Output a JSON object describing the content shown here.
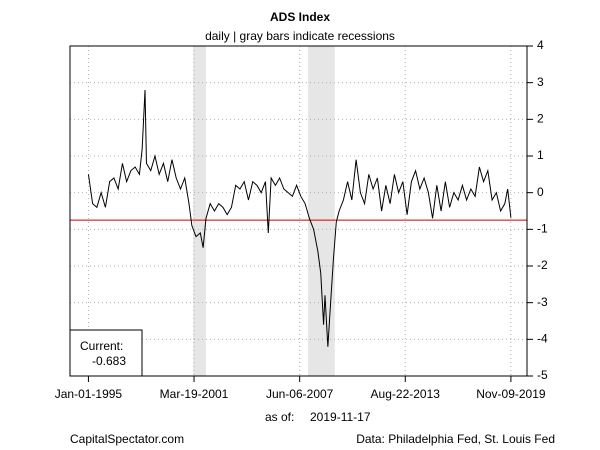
{
  "chart_data": {
    "type": "line",
    "title": "ADS Index",
    "subtitle": "daily | gray bars indicate recessions",
    "x": [
      "1995-01-01",
      "1995-04-01",
      "1995-07-01",
      "1995-10-01",
      "1996-01-01",
      "1996-04-01",
      "1996-07-01",
      "1996-10-01",
      "1997-01-01",
      "1997-04-01",
      "1997-07-01",
      "1997-10-01",
      "1998-01-01",
      "1998-03-01",
      "1998-05-01",
      "1998-06-01",
      "1998-09-01",
      "1998-12-01",
      "1999-03-01",
      "1999-06-01",
      "1999-09-01",
      "1999-12-01",
      "2000-03-01",
      "2000-06-01",
      "2000-09-01",
      "2000-12-01",
      "2001-02-01",
      "2001-05-01",
      "2001-08-01",
      "2001-10-01",
      "2001-12-01",
      "2002-03-01",
      "2002-06-01",
      "2002-09-01",
      "2002-12-01",
      "2003-03-01",
      "2003-06-01",
      "2003-09-01",
      "2003-12-01",
      "2004-03-01",
      "2004-06-01",
      "2004-09-01",
      "2004-12-01",
      "2005-03-01",
      "2005-06-01",
      "2005-08-01",
      "2005-10-01",
      "2006-01-01",
      "2006-04-01",
      "2006-07-01",
      "2006-10-01",
      "2007-01-01",
      "2007-04-01",
      "2007-07-01",
      "2007-10-01",
      "2008-01-01",
      "2008-04-01",
      "2008-07-01",
      "2008-09-01",
      "2008-11-01",
      "2008-12-01",
      "2009-02-01",
      "2009-04-01",
      "2009-06-01",
      "2009-08-01",
      "2009-10-01",
      "2010-01-01",
      "2010-04-01",
      "2010-07-01",
      "2010-10-01",
      "2011-01-01",
      "2011-04-01",
      "2011-07-01",
      "2011-10-01",
      "2012-01-01",
      "2012-04-01",
      "2012-07-01",
      "2012-10-01",
      "2013-01-01",
      "2013-04-01",
      "2013-07-01",
      "2013-10-01",
      "2014-01-01",
      "2014-04-01",
      "2014-07-01",
      "2014-10-01",
      "2015-01-01",
      "2015-04-01",
      "2015-07-01",
      "2015-10-01",
      "2016-01-01",
      "2016-04-01",
      "2016-07-01",
      "2016-10-01",
      "2017-01-01",
      "2017-04-01",
      "2017-07-01",
      "2017-10-01",
      "2018-01-01",
      "2018-04-01",
      "2018-07-01",
      "2018-10-01",
      "2019-01-01",
      "2019-04-01",
      "2019-07-01",
      "2019-09-01",
      "2019-11-09"
    ],
    "values": [
      0.5,
      -0.3,
      -0.4,
      0.0,
      -0.4,
      0.3,
      0.4,
      0.1,
      0.8,
      0.3,
      0.6,
      0.7,
      0.5,
      1.2,
      2.8,
      0.8,
      0.6,
      1.0,
      0.5,
      0.8,
      0.3,
      0.9,
      0.4,
      0.1,
      0.4,
      -0.3,
      -0.9,
      -1.2,
      -1.1,
      -1.5,
      -0.7,
      -0.3,
      -0.5,
      -0.3,
      -0.4,
      -0.6,
      -0.4,
      0.2,
      0.1,
      0.3,
      -0.2,
      0.3,
      0.2,
      0.0,
      0.3,
      -1.1,
      0.4,
      0.2,
      0.4,
      0.1,
      0.0,
      -0.1,
      0.2,
      -0.1,
      -0.3,
      -0.7,
      -1.0,
      -1.6,
      -2.2,
      -3.6,
      -2.8,
      -4.2,
      -3.0,
      -1.8,
      -0.8,
      -0.5,
      -0.2,
      0.3,
      -0.2,
      0.9,
      0.0,
      -0.3,
      0.5,
      0.1,
      0.4,
      -0.5,
      0.2,
      -0.3,
      0.5,
      0.0,
      0.3,
      -0.6,
      0.3,
      0.6,
      0.1,
      0.4,
      0.0,
      -0.7,
      0.2,
      -0.5,
      0.3,
      -0.4,
      0.0,
      -0.2,
      0.2,
      -0.2,
      0.1,
      -0.1,
      0.7,
      0.3,
      0.6,
      -0.2,
      0.0,
      -0.5,
      -0.3,
      0.1,
      -0.683
    ],
    "color": "#000000",
    "xlim": [
      "1993-12-01",
      "2020-10-20"
    ],
    "xticks": [
      {
        "value": "1995-01-01",
        "label": "Jan-01-1995"
      },
      {
        "value": "2001-03-19",
        "label": "Mar-19-2001"
      },
      {
        "value": "2007-06-06",
        "label": "Jun-06-2007"
      },
      {
        "value": "2013-08-22",
        "label": "Aug-22-2013"
      },
      {
        "value": "2019-11-09",
        "label": "Nov-09-2019"
      }
    ],
    "ylim": [
      -5,
      4
    ],
    "yticks": [
      -5,
      -4,
      -3,
      -2,
      -1,
      0,
      1,
      2,
      3,
      4
    ],
    "grid": true,
    "recessions": [
      [
        "2001-03-01",
        "2001-11-30"
      ],
      [
        "2007-12-01",
        "2009-06-30"
      ]
    ],
    "recession_color": "#e6e6e6",
    "hline": -0.75,
    "hline_color": "#cc0000",
    "current_label": "Current:",
    "current_value": -0.683,
    "as_of_label": "as of:",
    "as_of_date": "2019-11-17",
    "source_left": "CapitalSpectator.com",
    "source_right": "Data: Philadelphia Fed, St. Louis Fed"
  }
}
